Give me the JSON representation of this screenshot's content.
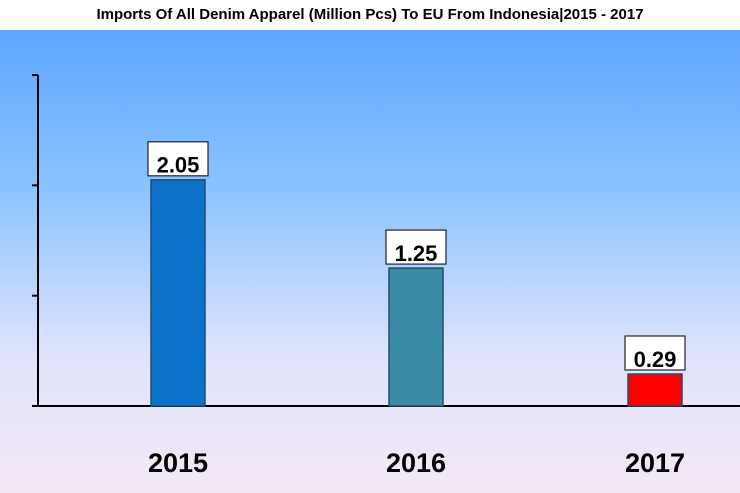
{
  "chart_data": {
    "type": "bar",
    "title": "Imports Of All Denim Apparel (Million Pcs) To EU From Indonesia|2015 - 2017",
    "xlabel": "",
    "ylabel": "",
    "categories": [
      "2015",
      "2016",
      "2017"
    ],
    "values": [
      2.05,
      1.25,
      0.29
    ],
    "value_labels": [
      "2.05",
      "1.25",
      "0.29"
    ],
    "ylim": [
      0,
      3
    ],
    "grid": false,
    "bar_colors": [
      "#0a72c9",
      "#3a8ba6",
      "#ff0000"
    ],
    "background_gradient": [
      "#5ea6ff",
      "#f3e6f7"
    ]
  }
}
